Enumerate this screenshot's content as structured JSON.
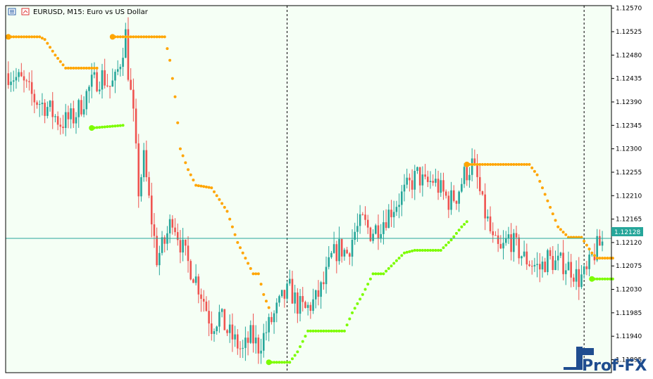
{
  "header": {
    "symbol_title": "EURUSD, M15:  Euro vs US Dollar"
  },
  "price_axis": {
    "ticks": [
      "1.12570",
      "1.12525",
      "1.12480",
      "1.12435",
      "1.12390",
      "1.12345",
      "1.12300",
      "1.12255",
      "1.12210",
      "1.12165",
      "1.12120",
      "1.12075",
      "1.12030",
      "1.11985",
      "1.11940",
      "1.11895"
    ],
    "current_price": "1.12128"
  },
  "logo": {
    "text": "Prof-FX"
  },
  "colors": {
    "background": "#f5fff5",
    "bull": "#26a69a",
    "bear": "#ef5350",
    "trail_orange": "#ffa500",
    "trail_green": "#7cfc00",
    "price_line": "#26a69a",
    "separator": "#000000"
  },
  "chart_data": {
    "type": "candlestick",
    "symbol": "EURUSD",
    "timeframe": "M15",
    "ylim": [
      1.1187,
      1.12575
    ],
    "bar_count": 155,
    "candles_close_path": [
      [
        0,
        1.12445
      ],
      [
        5,
        1.1243
      ],
      [
        10,
        1.12395
      ],
      [
        15,
        1.1238
      ],
      [
        20,
        1.1235
      ],
      [
        25,
        1.1236
      ],
      [
        28,
        1.12385
      ],
      [
        32,
        1.12425
      ],
      [
        36,
        1.1244
      ],
      [
        39,
        1.1242
      ],
      [
        41,
        1.1243
      ],
      [
        43,
        1.1247
      ],
      [
        45,
        1.1252
      ],
      [
        46,
        1.1245
      ],
      [
        48,
        1.1236
      ],
      [
        50,
        1.1222
      ],
      [
        52,
        1.1228
      ],
      [
        54,
        1.122
      ],
      [
        57,
        1.1209
      ],
      [
        60,
        1.1212
      ],
      [
        63,
        1.1217
      ],
      [
        66,
        1.1212
      ],
      [
        69,
        1.1208
      ],
      [
        72,
        1.1205
      ],
      [
        75,
        1.1201
      ],
      [
        78,
        1.1196
      ],
      [
        81,
        1.1198
      ],
      [
        84,
        1.1195
      ],
      [
        87,
        1.1193
      ],
      [
        90,
        1.1191
      ],
      [
        93,
        1.1194
      ],
      [
        96,
        1.1192
      ],
      [
        99,
        1.1195
      ],
      [
        102,
        1.1198
      ],
      [
        105,
        1.1201
      ],
      [
        108,
        1.1203
      ],
      [
        111,
        1.12
      ],
      [
        114,
        1.1199
      ],
      [
        116,
        1.12
      ],
      [
        118,
        1.1201
      ],
      [
        121,
        1.1204
      ],
      [
        124,
        1.1209
      ],
      [
        127,
        1.1211
      ],
      [
        130,
        1.121
      ],
      [
        133,
        1.1214
      ],
      [
        136,
        1.1216
      ],
      [
        139,
        1.1214
      ],
      [
        142,
        1.1215
      ],
      [
        145,
        1.1217
      ],
      [
        148,
        1.1219
      ],
      [
        151,
        1.1221
      ],
      [
        154,
        1.1223
      ],
      [
        157,
        1.1225
      ],
      [
        160,
        1.1223
      ],
      [
        163,
        1.1224
      ],
      [
        166,
        1.1222
      ],
      [
        169,
        1.122
      ],
      [
        172,
        1.1221
      ],
      [
        175,
        1.1225
      ],
      [
        178,
        1.1227
      ],
      [
        180,
        1.1224
      ],
      [
        182,
        1.1219
      ],
      [
        184,
        1.1216
      ],
      [
        186,
        1.1212
      ],
      [
        189,
        1.121
      ],
      [
        192,
        1.1213
      ],
      [
        195,
        1.1211
      ],
      [
        198,
        1.1209
      ],
      [
        201,
        1.1208
      ],
      [
        204,
        1.1207
      ],
      [
        207,
        1.1209
      ],
      [
        210,
        1.1208
      ],
      [
        213,
        1.1208
      ],
      [
        216,
        1.1207
      ],
      [
        219,
        1.1205
      ],
      [
        222,
        1.1206
      ],
      [
        224,
        1.1209
      ],
      [
        226,
        1.1211
      ],
      [
        228,
        1.1212
      ]
    ],
    "trail_orange_segments": [
      [
        [
          0,
          1.12515
        ],
        [
          12,
          1.12515
        ],
        [
          14,
          1.1251
        ],
        [
          18,
          1.1248
        ],
        [
          22,
          1.12455
        ],
        [
          34,
          1.12455
        ]
      ],
      [
        [
          40,
          1.12515
        ],
        [
          60,
          1.12515
        ],
        [
          62,
          1.1247
        ],
        [
          64,
          1.124
        ],
        [
          66,
          1.123
        ],
        [
          69,
          1.1226
        ],
        [
          72,
          1.1223
        ],
        [
          78,
          1.12225
        ],
        [
          84,
          1.1218
        ],
        [
          88,
          1.1212
        ],
        [
          92,
          1.1208
        ],
        [
          94,
          1.1206
        ],
        [
          96,
          1.1206
        ],
        [
          98,
          1.1202
        ],
        [
          100,
          1.11995
        ]
      ],
      [
        [
          176,
          1.1227
        ],
        [
          200,
          1.1227
        ],
        [
          203,
          1.1225
        ],
        [
          207,
          1.122
        ],
        [
          211,
          1.1215
        ],
        [
          215,
          1.1213
        ],
        [
          220,
          1.1213
        ],
        [
          224,
          1.121
        ],
        [
          226,
          1.1209
        ],
        [
          232,
          1.1209
        ]
      ]
    ],
    "trail_green_segments": [
      [
        [
          32,
          1.1234
        ],
        [
          44,
          1.12345
        ]
      ],
      [
        [
          100,
          1.1189
        ],
        [
          108,
          1.1189
        ],
        [
          111,
          1.1191
        ],
        [
          115,
          1.1195
        ],
        [
          118,
          1.1195
        ],
        [
          124,
          1.1195
        ],
        [
          129,
          1.1195
        ],
        [
          132,
          1.11985
        ],
        [
          136,
          1.1202
        ],
        [
          140,
          1.1206
        ],
        [
          144,
          1.1206
        ],
        [
          148,
          1.1208
        ],
        [
          152,
          1.121
        ],
        [
          156,
          1.12105
        ],
        [
          160,
          1.12105
        ],
        [
          166,
          1.12105
        ],
        [
          170,
          1.12125
        ],
        [
          174,
          1.1215
        ],
        [
          176,
          1.1216
        ]
      ],
      [
        [
          224,
          1.1205
        ],
        [
          232,
          1.1205
        ]
      ]
    ],
    "period_separators_at_bar": [
      107,
      221
    ]
  }
}
